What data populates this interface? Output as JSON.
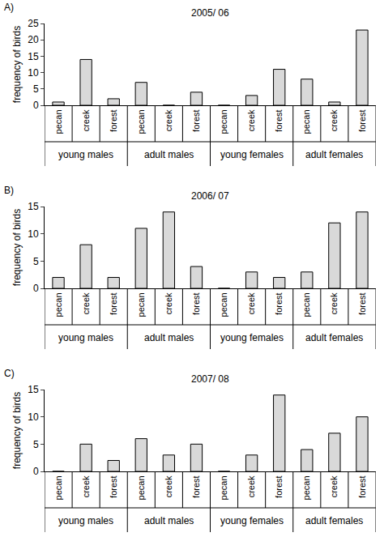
{
  "chart_data": [
    {
      "type": "bar",
      "panel_label": "A)",
      "title": "2005/ 06",
      "y_label": "frequency of birds",
      "categories": [
        "pecan",
        "creek",
        "forest",
        "pecan",
        "creek",
        "forest",
        "pecan",
        "creek",
        "forest",
        "pecan",
        "creek",
        "forest"
      ],
      "category_groups": [
        "young males",
        "young males",
        "young males",
        "adult males",
        "adult males",
        "adult males",
        "young females",
        "young females",
        "young females",
        "adult females",
        "adult females",
        "adult females"
      ],
      "values": [
        1,
        14,
        2,
        7,
        0,
        4,
        0,
        3,
        11,
        8,
        1,
        23
      ],
      "color": "#d9d9d9",
      "ylim": [
        0,
        25
      ],
      "yticks": [
        0,
        5,
        10,
        15,
        20,
        25
      ],
      "grid": false
    },
    {
      "type": "bar",
      "panel_label": "B)",
      "title": "2006/ 07",
      "y_label": "frequency of birds",
      "categories": [
        "pecan",
        "creek",
        "forest",
        "pecan",
        "creek",
        "forest",
        "pecan",
        "creek",
        "forest",
        "pecan",
        "creek",
        "forest"
      ],
      "category_groups": [
        "young males",
        "young males",
        "young males",
        "adult males",
        "adult males",
        "adult males",
        "young females",
        "young females",
        "young females",
        "adult females",
        "adult females",
        "adult females"
      ],
      "values": [
        2,
        8,
        2,
        11,
        14,
        4,
        0,
        3,
        2,
        3,
        12,
        14
      ],
      "color": "#d9d9d9",
      "ylim": [
        0,
        15
      ],
      "yticks": [
        0,
        5,
        10,
        15
      ],
      "grid": false
    },
    {
      "type": "bar",
      "panel_label": "C)",
      "title": "2007/ 08",
      "y_label": "frequency of birds",
      "categories": [
        "pecan",
        "creek",
        "forest",
        "pecan",
        "creek",
        "forest",
        "pecan",
        "creek",
        "forest",
        "pecan",
        "creek",
        "forest"
      ],
      "category_groups": [
        "young males",
        "young males",
        "young males",
        "adult males",
        "adult males",
        "adult males",
        "young females",
        "young females",
        "young females",
        "adult females",
        "adult females",
        "adult females"
      ],
      "values": [
        0,
        5,
        2,
        6,
        3,
        5,
        0,
        3,
        14,
        4,
        7,
        10
      ],
      "color": "#d9d9d9",
      "ylim": [
        0,
        15
      ],
      "yticks": [
        0,
        5,
        10,
        15
      ],
      "grid": false
    }
  ]
}
